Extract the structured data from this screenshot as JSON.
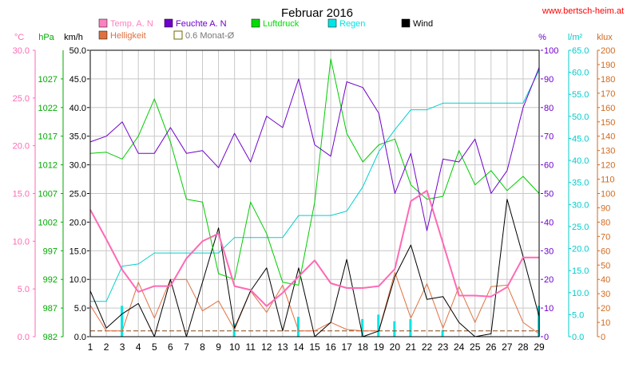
{
  "chart_data": {
    "type": "line",
    "title": "Februar 2016",
    "source": "www.bertsch-heim.at",
    "x": [
      1,
      2,
      3,
      4,
      5,
      6,
      7,
      8,
      9,
      10,
      11,
      12,
      13,
      14,
      15,
      16,
      17,
      18,
      19,
      20,
      21,
      22,
      23,
      24,
      25,
      26,
      27,
      28,
      29
    ],
    "axes": {
      "temp": {
        "unit": "°C",
        "range": [
          0,
          30
        ],
        "ticks": [
          "0.0",
          "5.0",
          "10.0",
          "15.0",
          "20.0",
          "25.0",
          "30.0"
        ],
        "color": "#ff69b4"
      },
      "pressure": {
        "unit": "hPa",
        "range": [
          982,
          1032
        ],
        "ticks": [
          "982",
          "987",
          "992",
          "997",
          "1002",
          "1007",
          "1012",
          "1017",
          "1022",
          "1027"
        ],
        "color": "#00aa00"
      },
      "wind": {
        "unit": "km/h",
        "range": [
          0,
          50
        ],
        "ticks": [
          "0.0",
          "5.0",
          "10.0",
          "15.0",
          "20.0",
          "25.0",
          "30.0",
          "35.0",
          "40.0",
          "45.0",
          "50.0"
        ],
        "color": "#000000"
      },
      "humidity": {
        "unit": "%",
        "range": [
          0,
          100
        ],
        "ticks": [
          "0",
          "10",
          "20",
          "30",
          "40",
          "50",
          "60",
          "70",
          "80",
          "90",
          "100"
        ],
        "color": "#7000cc"
      },
      "rain": {
        "unit": "l/m²",
        "range": [
          0,
          65
        ],
        "ticks": [
          "0.0",
          "5.0",
          "10.0",
          "15.0",
          "20.0",
          "25.0",
          "30.0",
          "35.0",
          "40.0",
          "45.0",
          "50.0",
          "55.0",
          "60.0",
          "65.0"
        ],
        "color": "#00cccc"
      },
      "light": {
        "unit": "klux",
        "range": [
          0,
          200
        ],
        "ticks": [
          "0",
          "10",
          "20",
          "30",
          "40",
          "50",
          "60",
          "70",
          "80",
          "90",
          "100",
          "110",
          "120",
          "130",
          "140",
          "150",
          "160",
          "170",
          "180",
          "190",
          "200"
        ],
        "color": "#d2691e"
      }
    },
    "legend": [
      {
        "label": "Temp. A. N",
        "color": "#ff80c0",
        "swatch": "filled"
      },
      {
        "label": "Feuchte A. N",
        "color": "#7000cc",
        "swatch": "filled"
      },
      {
        "label": "Luftdruck",
        "color": "#00dd00",
        "swatch": "filled"
      },
      {
        "label": "Regen",
        "color": "#00e5e5",
        "swatch": "filled"
      },
      {
        "label": "Wind",
        "color": "#000000",
        "swatch": "filled"
      },
      {
        "label": "Helligkeit",
        "color": "#e07040",
        "swatch": "filled"
      },
      {
        "label": "0.6 Monat-Ø",
        "color": "#777777",
        "swatch": "outline"
      }
    ],
    "series": [
      {
        "name": "Temp. A. N",
        "axis": "temp",
        "color": "#ff69b4",
        "width": 2,
        "values": [
          13.3,
          10.2,
          7.0,
          4.7,
          5.3,
          5.3,
          8.2,
          10.0,
          10.8,
          5.3,
          4.9,
          3.2,
          4.6,
          6.3,
          8.0,
          5.6,
          5.1,
          5.1,
          5.3,
          7.1,
          14.2,
          15.3,
          9.8,
          4.3,
          4.3,
          4.2,
          5.2,
          8.3,
          8.3
        ]
      },
      {
        "name": "Feuchte A. N",
        "axis": "humidity",
        "color": "#7000cc",
        "width": 1,
        "values": [
          68,
          70,
          75,
          64,
          64,
          73,
          64,
          65,
          59,
          71,
          61,
          77,
          73,
          90,
          67,
          63,
          89,
          87,
          78,
          50,
          64,
          37,
          62,
          61,
          69,
          50,
          58,
          80,
          94
        ]
      },
      {
        "name": "Luftdruck",
        "axis": "pressure",
        "color": "#00cc00",
        "width": 1,
        "values": [
          1014,
          1014.2,
          1013,
          1017,
          1023.5,
          1016,
          1006,
          1005.5,
          993,
          992,
          1005.5,
          1000,
          991.5,
          991,
          1005.5,
          1030.5,
          1017.5,
          1012.5,
          1015.5,
          1016.5,
          1008.5,
          1006,
          1006.5,
          1014.5,
          1008.5,
          1011,
          1007.5,
          1010,
          1007
        ]
      },
      {
        "name": "Regen",
        "axis": "rain",
        "color": "#00d0d0",
        "width": 1,
        "values": [
          8,
          8,
          16,
          16.5,
          19,
          19,
          19,
          19,
          19,
          22.5,
          22.5,
          22.5,
          22.5,
          27.5,
          27.5,
          27.5,
          28.5,
          34,
          42,
          47,
          51.5,
          51.5,
          53,
          53,
          53,
          53,
          53,
          53,
          60.5
        ]
      },
      {
        "name": "Wind",
        "axis": "wind",
        "color": "#000000",
        "width": 1,
        "values": [
          8,
          1.5,
          4,
          5.8,
          0,
          10,
          0,
          9.5,
          19,
          1.5,
          8,
          12,
          1,
          12,
          0,
          2.5,
          13.5,
          0,
          1,
          10.5,
          16,
          6.5,
          7,
          2.5,
          0,
          0.5,
          24,
          14,
          3.5
        ]
      },
      {
        "name": "Helligkeit",
        "axis": "light",
        "color": "#e07040",
        "width": 1,
        "values": [
          22,
          4,
          4,
          38,
          13,
          40,
          40,
          18,
          25,
          5,
          32,
          17,
          36,
          4,
          4,
          10,
          5,
          4,
          4,
          45,
          13,
          37,
          6,
          35,
          10,
          35,
          36,
          10,
          2
        ]
      },
      {
        "name": "0.6 Monat-Ø",
        "axis": "light",
        "color": "#8b4513",
        "width": 1,
        "dashed": true,
        "values": [
          4,
          4,
          4,
          4,
          4,
          4,
          4,
          4,
          4,
          4,
          4,
          4,
          4,
          4,
          4,
          4,
          4,
          4,
          4,
          4,
          4,
          4,
          4,
          4,
          4,
          4,
          4,
          4,
          4
        ]
      }
    ],
    "rain_bars": {
      "axis": "rain",
      "color": "#00e5e5",
      "values": [
        0,
        0,
        7,
        0,
        0,
        0,
        0,
        0,
        0,
        3,
        0,
        0,
        0,
        4.5,
        0,
        0,
        0,
        4,
        5,
        3.5,
        4,
        0,
        1.5,
        0,
        0,
        0,
        0,
        0,
        7
      ]
    },
    "grid": true
  }
}
